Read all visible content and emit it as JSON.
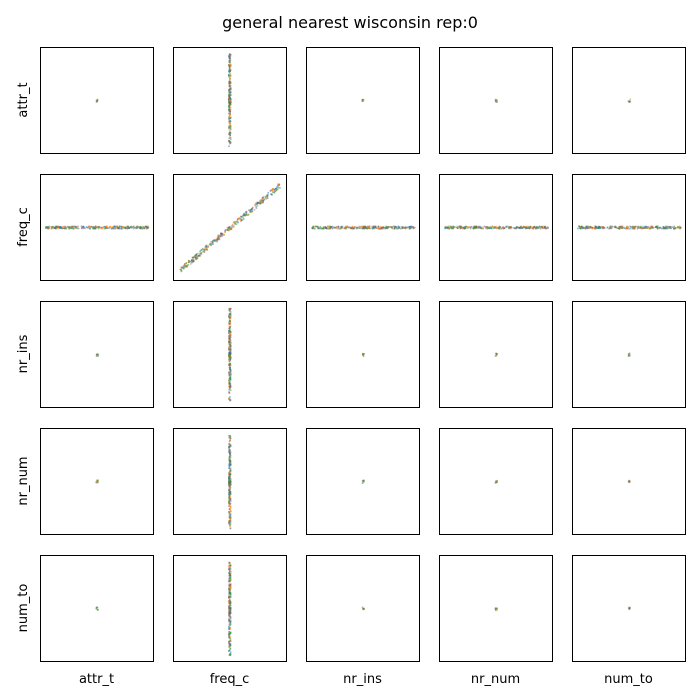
{
  "chart_data": {
    "type": "scatter",
    "title": "general nearest wisconsin rep:0",
    "variables": [
      "attr_t",
      "freq_c",
      "nr_ins",
      "nr_num",
      "num_to"
    ],
    "axes_ticks": "hidden",
    "grid": false,
    "point_colors": [
      "#1f77b4",
      "#ff7f0e",
      "#2ca02c",
      "#7f7f7f",
      "#8c564b"
    ],
    "panels": [
      {
        "row": "attr_t",
        "col": "attr_t",
        "shape": "dot"
      },
      {
        "row": "attr_t",
        "col": "freq_c",
        "shape": "vertical-band"
      },
      {
        "row": "attr_t",
        "col": "nr_ins",
        "shape": "dot"
      },
      {
        "row": "attr_t",
        "col": "nr_num",
        "shape": "dot"
      },
      {
        "row": "attr_t",
        "col": "num_to",
        "shape": "dot"
      },
      {
        "row": "freq_c",
        "col": "attr_t",
        "shape": "horizontal-band"
      },
      {
        "row": "freq_c",
        "col": "freq_c",
        "shape": "diagonal"
      },
      {
        "row": "freq_c",
        "col": "nr_ins",
        "shape": "horizontal-band"
      },
      {
        "row": "freq_c",
        "col": "nr_num",
        "shape": "horizontal-band"
      },
      {
        "row": "freq_c",
        "col": "num_to",
        "shape": "horizontal-band"
      },
      {
        "row": "nr_ins",
        "col": "attr_t",
        "shape": "dot"
      },
      {
        "row": "nr_ins",
        "col": "freq_c",
        "shape": "vertical-band"
      },
      {
        "row": "nr_ins",
        "col": "nr_ins",
        "shape": "dot"
      },
      {
        "row": "nr_ins",
        "col": "nr_num",
        "shape": "dot"
      },
      {
        "row": "nr_ins",
        "col": "num_to",
        "shape": "dot"
      },
      {
        "row": "nr_num",
        "col": "attr_t",
        "shape": "dot"
      },
      {
        "row": "nr_num",
        "col": "freq_c",
        "shape": "vertical-band"
      },
      {
        "row": "nr_num",
        "col": "nr_ins",
        "shape": "dot"
      },
      {
        "row": "nr_num",
        "col": "nr_num",
        "shape": "dot"
      },
      {
        "row": "nr_num",
        "col": "num_to",
        "shape": "dot"
      },
      {
        "row": "num_to",
        "col": "attr_t",
        "shape": "dot"
      },
      {
        "row": "num_to",
        "col": "freq_c",
        "shape": "vertical-band"
      },
      {
        "row": "num_to",
        "col": "nr_ins",
        "shape": "dot"
      },
      {
        "row": "num_to",
        "col": "nr_num",
        "shape": "dot"
      },
      {
        "row": "num_to",
        "col": "num_to",
        "shape": "dot"
      }
    ]
  }
}
